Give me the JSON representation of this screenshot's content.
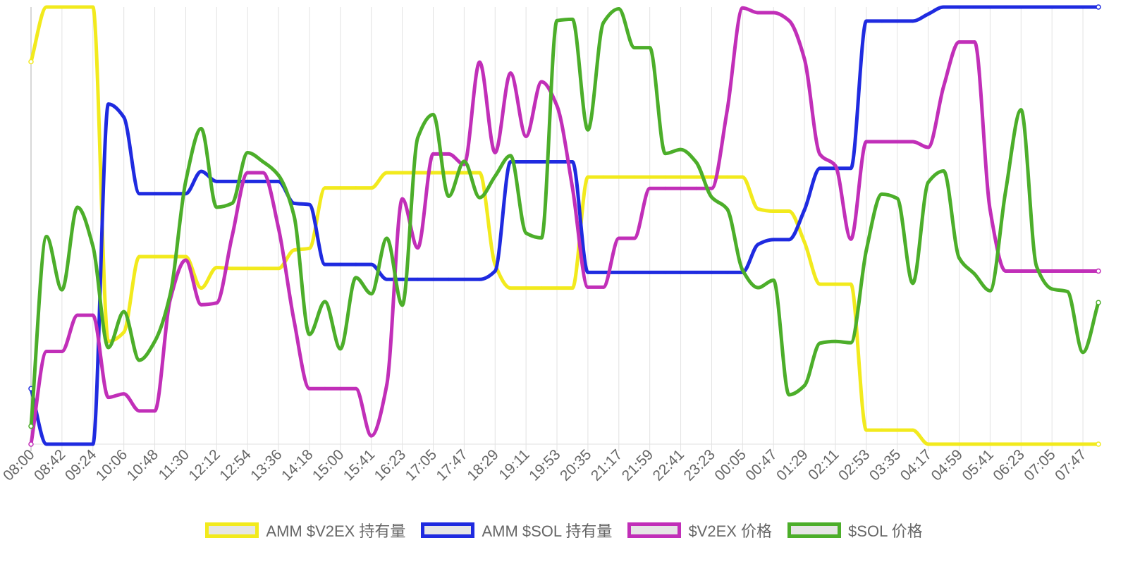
{
  "chart_data": {
    "type": "line",
    "title": "",
    "xlabel": "",
    "ylabel": "",
    "grid": true,
    "legend_position": "bottom",
    "ylim": [
      0,
      100
    ],
    "x": [
      "08:00",
      "08:21",
      "08:42",
      "09:03",
      "09:24",
      "09:45",
      "10:06",
      "10:27",
      "10:48",
      "11:09",
      "11:30",
      "11:51",
      "12:12",
      "12:33",
      "12:54",
      "13:15",
      "13:36",
      "13:57",
      "14:18",
      "14:39",
      "15:00",
      "15:20",
      "15:41",
      "16:02",
      "16:23",
      "16:44",
      "17:05",
      "17:26",
      "17:47",
      "18:08",
      "18:29",
      "18:50",
      "19:11",
      "19:32",
      "19:53",
      "20:14",
      "20:35",
      "20:56",
      "21:17",
      "21:38",
      "21:59",
      "22:20",
      "22:41",
      "23:02",
      "23:23",
      "23:44",
      "00:05",
      "00:26",
      "00:47",
      "01:08",
      "01:29",
      "01:50",
      "02:11",
      "02:32",
      "02:53",
      "03:14",
      "03:35",
      "03:56",
      "04:17",
      "04:38",
      "04:59",
      "05:20",
      "05:41",
      "06:02",
      "06:23",
      "06:44",
      "07:05",
      "07:26",
      "07:47",
      "08:08"
    ],
    "tick_labels": [
      "08:00",
      "08:42",
      "09:24",
      "10:06",
      "10:48",
      "11:30",
      "12:12",
      "12:54",
      "13:36",
      "14:18",
      "15:00",
      "15:41",
      "16:23",
      "17:05",
      "17:47",
      "18:29",
      "19:11",
      "19:53",
      "20:35",
      "21:17",
      "21:59",
      "22:41",
      "23:23",
      "00:05",
      "00:47",
      "01:29",
      "02:11",
      "02:53",
      "03:35",
      "04:17",
      "04:59",
      "05:41",
      "06:23",
      "07:05",
      "07:47"
    ],
    "series": [
      {
        "name": "AMM $V2EX 持有量",
        "color": "#f2ea1d",
        "values": [
          87.5,
          100,
          100,
          100,
          100,
          23.5,
          25.6,
          42.9,
          42.9,
          42.9,
          42.9,
          35.7,
          40.4,
          40.2,
          40.2,
          40.2,
          40.2,
          44.4,
          44.8,
          58.6,
          58.6,
          58.6,
          58.6,
          62.1,
          62.1,
          62.1,
          62.1,
          62.1,
          62.1,
          62.1,
          41.1,
          35.7,
          35.7,
          35.7,
          35.7,
          35.7,
          61.1,
          61.1,
          61.1,
          61.1,
          61.1,
          61.1,
          61.1,
          61.1,
          61.1,
          61.1,
          61.1,
          53.8,
          53.3,
          53.3,
          46.2,
          36.6,
          36.6,
          36.6,
          3.2,
          3.2,
          3.2,
          3.2,
          0,
          0,
          0,
          0,
          0,
          0,
          0,
          0,
          0,
          0,
          0,
          0
        ]
      },
      {
        "name": "AMM $SOL 持有量",
        "color": "#1f2be0",
        "values": [
          12.7,
          0,
          0,
          0,
          0,
          77.8,
          74.8,
          57.3,
          57.3,
          57.3,
          57.3,
          62.4,
          60.1,
          60.1,
          60.1,
          60.1,
          60.1,
          55.1,
          54.8,
          41.1,
          41.1,
          41.1,
          41.1,
          37.7,
          37.7,
          37.7,
          37.7,
          37.7,
          37.7,
          37.7,
          39.6,
          64.6,
          64.6,
          64.6,
          64.6,
          64.6,
          39.3,
          39.3,
          39.3,
          39.3,
          39.3,
          39.3,
          39.3,
          39.3,
          39.3,
          39.3,
          39.3,
          45.7,
          46.8,
          46.8,
          53.6,
          63.1,
          63.1,
          63.1,
          96.8,
          96.8,
          96.8,
          96.8,
          98.4,
          100,
          100,
          100,
          100,
          100,
          100,
          100,
          100,
          100,
          100,
          100
        ]
      },
      {
        "name": "$V2EX 价格",
        "color": "#c12fb8",
        "values": [
          0,
          21.2,
          21.2,
          29.5,
          29.5,
          10.7,
          11.5,
          7.6,
          7.6,
          33.1,
          42.1,
          31.9,
          32.3,
          47.6,
          62.1,
          62.1,
          49.4,
          28.3,
          12.7,
          12.7,
          12.7,
          12.7,
          1.9,
          13.6,
          56.1,
          44.9,
          66.4,
          66.4,
          64,
          87.4,
          66.7,
          84.9,
          70.4,
          82.9,
          77.4,
          58.7,
          35.9,
          35.9,
          47.1,
          47.1,
          58.5,
          58.5,
          58.5,
          58.5,
          58.5,
          76.3,
          99.8,
          98.7,
          98.7,
          96.9,
          88.1,
          66.3,
          63.7,
          46.9,
          69.2,
          69.2,
          69.2,
          69.2,
          67.9,
          81.9,
          92,
          92,
          53.6,
          39.6,
          39.6,
          39.6,
          39.6,
          39.6,
          39.6,
          39.6
        ]
      },
      {
        "name": "$SOL 价格",
        "color": "#4cae2a",
        "values": [
          4.1,
          47.5,
          35.3,
          54.2,
          45.3,
          22.1,
          30.3,
          19.2,
          23.5,
          34.3,
          60.1,
          72.2,
          54.2,
          55.1,
          66.7,
          64.6,
          61.5,
          52.3,
          25.1,
          32.6,
          21.8,
          38.1,
          34.4,
          47.1,
          31.8,
          70.1,
          75.4,
          56.7,
          64.7,
          56.4,
          61.3,
          66,
          48.3,
          47.2,
          96.9,
          97.2,
          71.9,
          96.4,
          99.6,
          90.7,
          90.7,
          66.5,
          67.4,
          64.5,
          56.5,
          53.8,
          39.8,
          35.8,
          37.5,
          11.3,
          13.4,
          23.1,
          23.5,
          23.2,
          44.4,
          57.2,
          56.2,
          36.8,
          59.9,
          62.5,
          42.6,
          38.9,
          35.1,
          57.8,
          76.5,
          40.7,
          35.5,
          34.9,
          21,
          32.4
        ]
      }
    ]
  }
}
